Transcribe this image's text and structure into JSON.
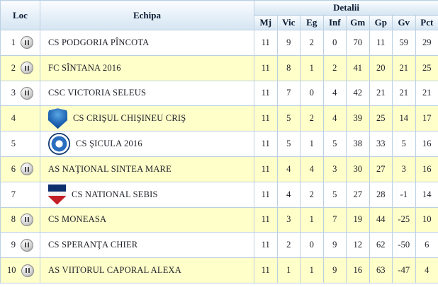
{
  "table": {
    "headers": {
      "loc": "Loc",
      "echipa": "Echipa",
      "detalii": "Detalii",
      "stats": [
        "Mj",
        "Vic",
        "Eg",
        "Inf",
        "Gm",
        "Gp",
        "Gv",
        "Pct"
      ]
    },
    "icons": {
      "default": "pause-badge-icon",
      "crisul": "crisul-chisineu-cris-crest-icon",
      "sicula": "sicula-2016-badge-icon",
      "sebis": "national-sebis-crest-icon"
    },
    "rows": [
      {
        "loc": "1",
        "icon": "default",
        "name": "CS PODGORIA PÎNCOTA",
        "mj": "11",
        "vic": "9",
        "eg": "2",
        "inf": "0",
        "gm": "70",
        "gp": "11",
        "gv": "59",
        "pct": "29"
      },
      {
        "loc": "2",
        "icon": "default",
        "name": "FC SÎNTANA 2016",
        "mj": "11",
        "vic": "8",
        "eg": "1",
        "inf": "2",
        "gm": "41",
        "gp": "20",
        "gv": "21",
        "pct": "25"
      },
      {
        "loc": "3",
        "icon": "default",
        "name": "CSC VICTORIA SELEUS",
        "mj": "11",
        "vic": "7",
        "eg": "0",
        "inf": "4",
        "gm": "42",
        "gp": "21",
        "gv": "21",
        "pct": "21"
      },
      {
        "loc": "4",
        "icon": "crisul",
        "name": "CS CRIŞUL CHIŞINEU CRIŞ",
        "mj": "11",
        "vic": "5",
        "eg": "2",
        "inf": "4",
        "gm": "39",
        "gp": "25",
        "gv": "14",
        "pct": "17"
      },
      {
        "loc": "5",
        "icon": "sicula",
        "name": "CS ŞICULA 2016",
        "mj": "11",
        "vic": "5",
        "eg": "1",
        "inf": "5",
        "gm": "38",
        "gp": "33",
        "gv": "5",
        "pct": "16"
      },
      {
        "loc": "6",
        "icon": "default",
        "name": "AS NAŢIONAL SINTEA MARE",
        "mj": "11",
        "vic": "4",
        "eg": "4",
        "inf": "3",
        "gm": "30",
        "gp": "27",
        "gv": "3",
        "pct": "16"
      },
      {
        "loc": "7",
        "icon": "sebis",
        "name": "CS NATIONAL SEBIS",
        "mj": "11",
        "vic": "4",
        "eg": "2",
        "inf": "5",
        "gm": "27",
        "gp": "28",
        "gv": "-1",
        "pct": "14"
      },
      {
        "loc": "8",
        "icon": "default",
        "name": "CS MONEASA",
        "mj": "11",
        "vic": "3",
        "eg": "1",
        "inf": "7",
        "gm": "19",
        "gp": "44",
        "gv": "-25",
        "pct": "10"
      },
      {
        "loc": "9",
        "icon": "default",
        "name": "CS SPERANŢA CHIER",
        "mj": "11",
        "vic": "2",
        "eg": "0",
        "inf": "9",
        "gm": "12",
        "gp": "62",
        "gv": "-50",
        "pct": "6"
      },
      {
        "loc": "10",
        "icon": "default",
        "name": "AS VIITORUL CAPORAL ALEXA",
        "mj": "11",
        "vic": "1",
        "eg": "1",
        "inf": "9",
        "gm": "16",
        "gp": "63",
        "gv": "-47",
        "pct": "4"
      }
    ]
  }
}
